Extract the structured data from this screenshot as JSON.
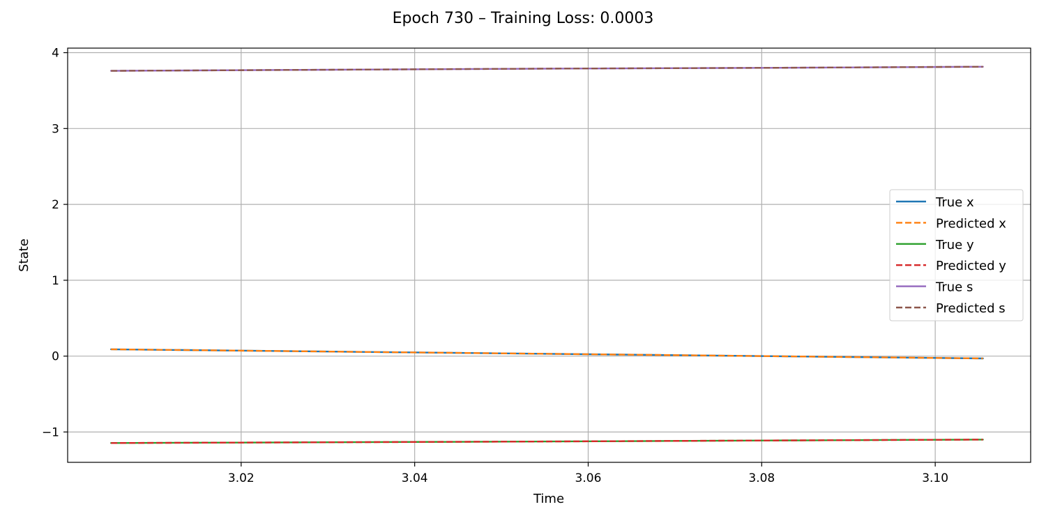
{
  "chart_data": {
    "type": "line",
    "title": "Epoch 730 – Training Loss: 0.0003",
    "xlabel": "Time",
    "ylabel": "State",
    "xlim": [
      3.0,
      3.111
    ],
    "ylim": [
      -1.4,
      4.06
    ],
    "xticks": [
      3.02,
      3.04,
      3.06,
      3.08,
      3.1
    ],
    "yticks": [
      -1,
      0,
      1,
      2,
      3,
      4
    ],
    "xtick_labels": [
      "3.02",
      "3.04",
      "3.06",
      "3.08",
      "3.10"
    ],
    "ytick_labels": [
      "−1",
      "0",
      "1",
      "2",
      "3",
      "4"
    ],
    "grid": true,
    "legend_position": "center-right",
    "x": [
      3.005,
      3.0305,
      3.0555,
      3.0805,
      3.1055
    ],
    "series": [
      {
        "name": "True x",
        "style": "solid",
        "color": "#1f77b4",
        "values": [
          0.09,
          0.06,
          0.03,
          0.0,
          -0.03
        ]
      },
      {
        "name": "Predicted x",
        "style": "dashed",
        "color": "#ff7f0e",
        "values": [
          0.09,
          0.06,
          0.03,
          0.0,
          -0.03
        ]
      },
      {
        "name": "True y",
        "style": "solid",
        "color": "#2ca02c",
        "values": [
          -1.145,
          -1.135,
          -1.125,
          -1.112,
          -1.1
        ]
      },
      {
        "name": "Predicted y",
        "style": "dashed",
        "color": "#d62728",
        "values": [
          -1.145,
          -1.135,
          -1.125,
          -1.112,
          -1.1
        ]
      },
      {
        "name": "True s",
        "style": "solid",
        "color": "#9467bd",
        "values": [
          3.76,
          3.775,
          3.79,
          3.8,
          3.815
        ]
      },
      {
        "name": "Predicted s",
        "style": "dashed",
        "color": "#8c564b",
        "values": [
          3.76,
          3.775,
          3.79,
          3.8,
          3.815
        ]
      }
    ]
  }
}
